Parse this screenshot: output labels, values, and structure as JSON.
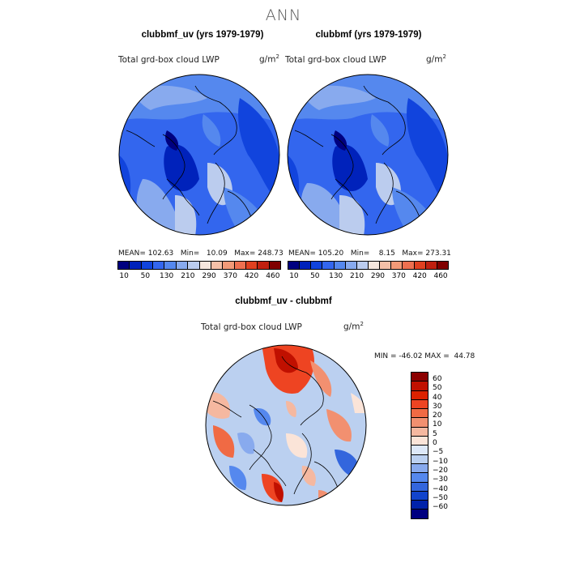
{
  "page": {
    "title": "ANN"
  },
  "panels": [
    {
      "title": "clubbmf_uv (yrs 1979-1979)",
      "field": "Total grd-box cloud LWP",
      "units": "g/m",
      "units_exp": "2",
      "stats": "MEAN= 102.63   Min=   10.09   Max= 248.73"
    },
    {
      "title": "clubbmf (yrs 1979-1979)",
      "field": "Total grd-box cloud LWP",
      "units": "g/m",
      "units_exp": "2",
      "stats": "MEAN= 105.20   Min=    8.15   Max= 273.31"
    }
  ],
  "diff": {
    "title": "clubbmf_uv - clubbmf",
    "field": "Total grd-box cloud LWP",
    "units": "g/m",
    "units_exp": "2",
    "stats": "MIN = -46.02 MAX =  44.78"
  },
  "colorbar_main": {
    "ticks": [
      "10",
      "50",
      "130",
      "210",
      "290",
      "370",
      "420",
      "460"
    ],
    "colors": [
      "#000080",
      "#0022bb",
      "#1144dd",
      "#3366ee",
      "#5588ee",
      "#88aaee",
      "#bbccee",
      "#f5e6dd",
      "#f5c0a8",
      "#f29a78",
      "#ee7050",
      "#e04020",
      "#c02010",
      "#800000"
    ]
  },
  "colorbar_diff": {
    "ticks": [
      "60",
      "50",
      "40",
      "30",
      "20",
      "10",
      "5",
      "0",
      "−5",
      "−10",
      "−20",
      "−30",
      "−40",
      "−50",
      "−60"
    ],
    "colors": [
      "#8b0000",
      "#c01000",
      "#dd2200",
      "#ee4422",
      "#f06a44",
      "#f29070",
      "#f5b8a0",
      "#fbe4d8",
      "#dde8f8",
      "#bbd0f0",
      "#88aaee",
      "#5588ee",
      "#3366dd",
      "#1144cc",
      "#0022aa",
      "#000080"
    ]
  }
}
